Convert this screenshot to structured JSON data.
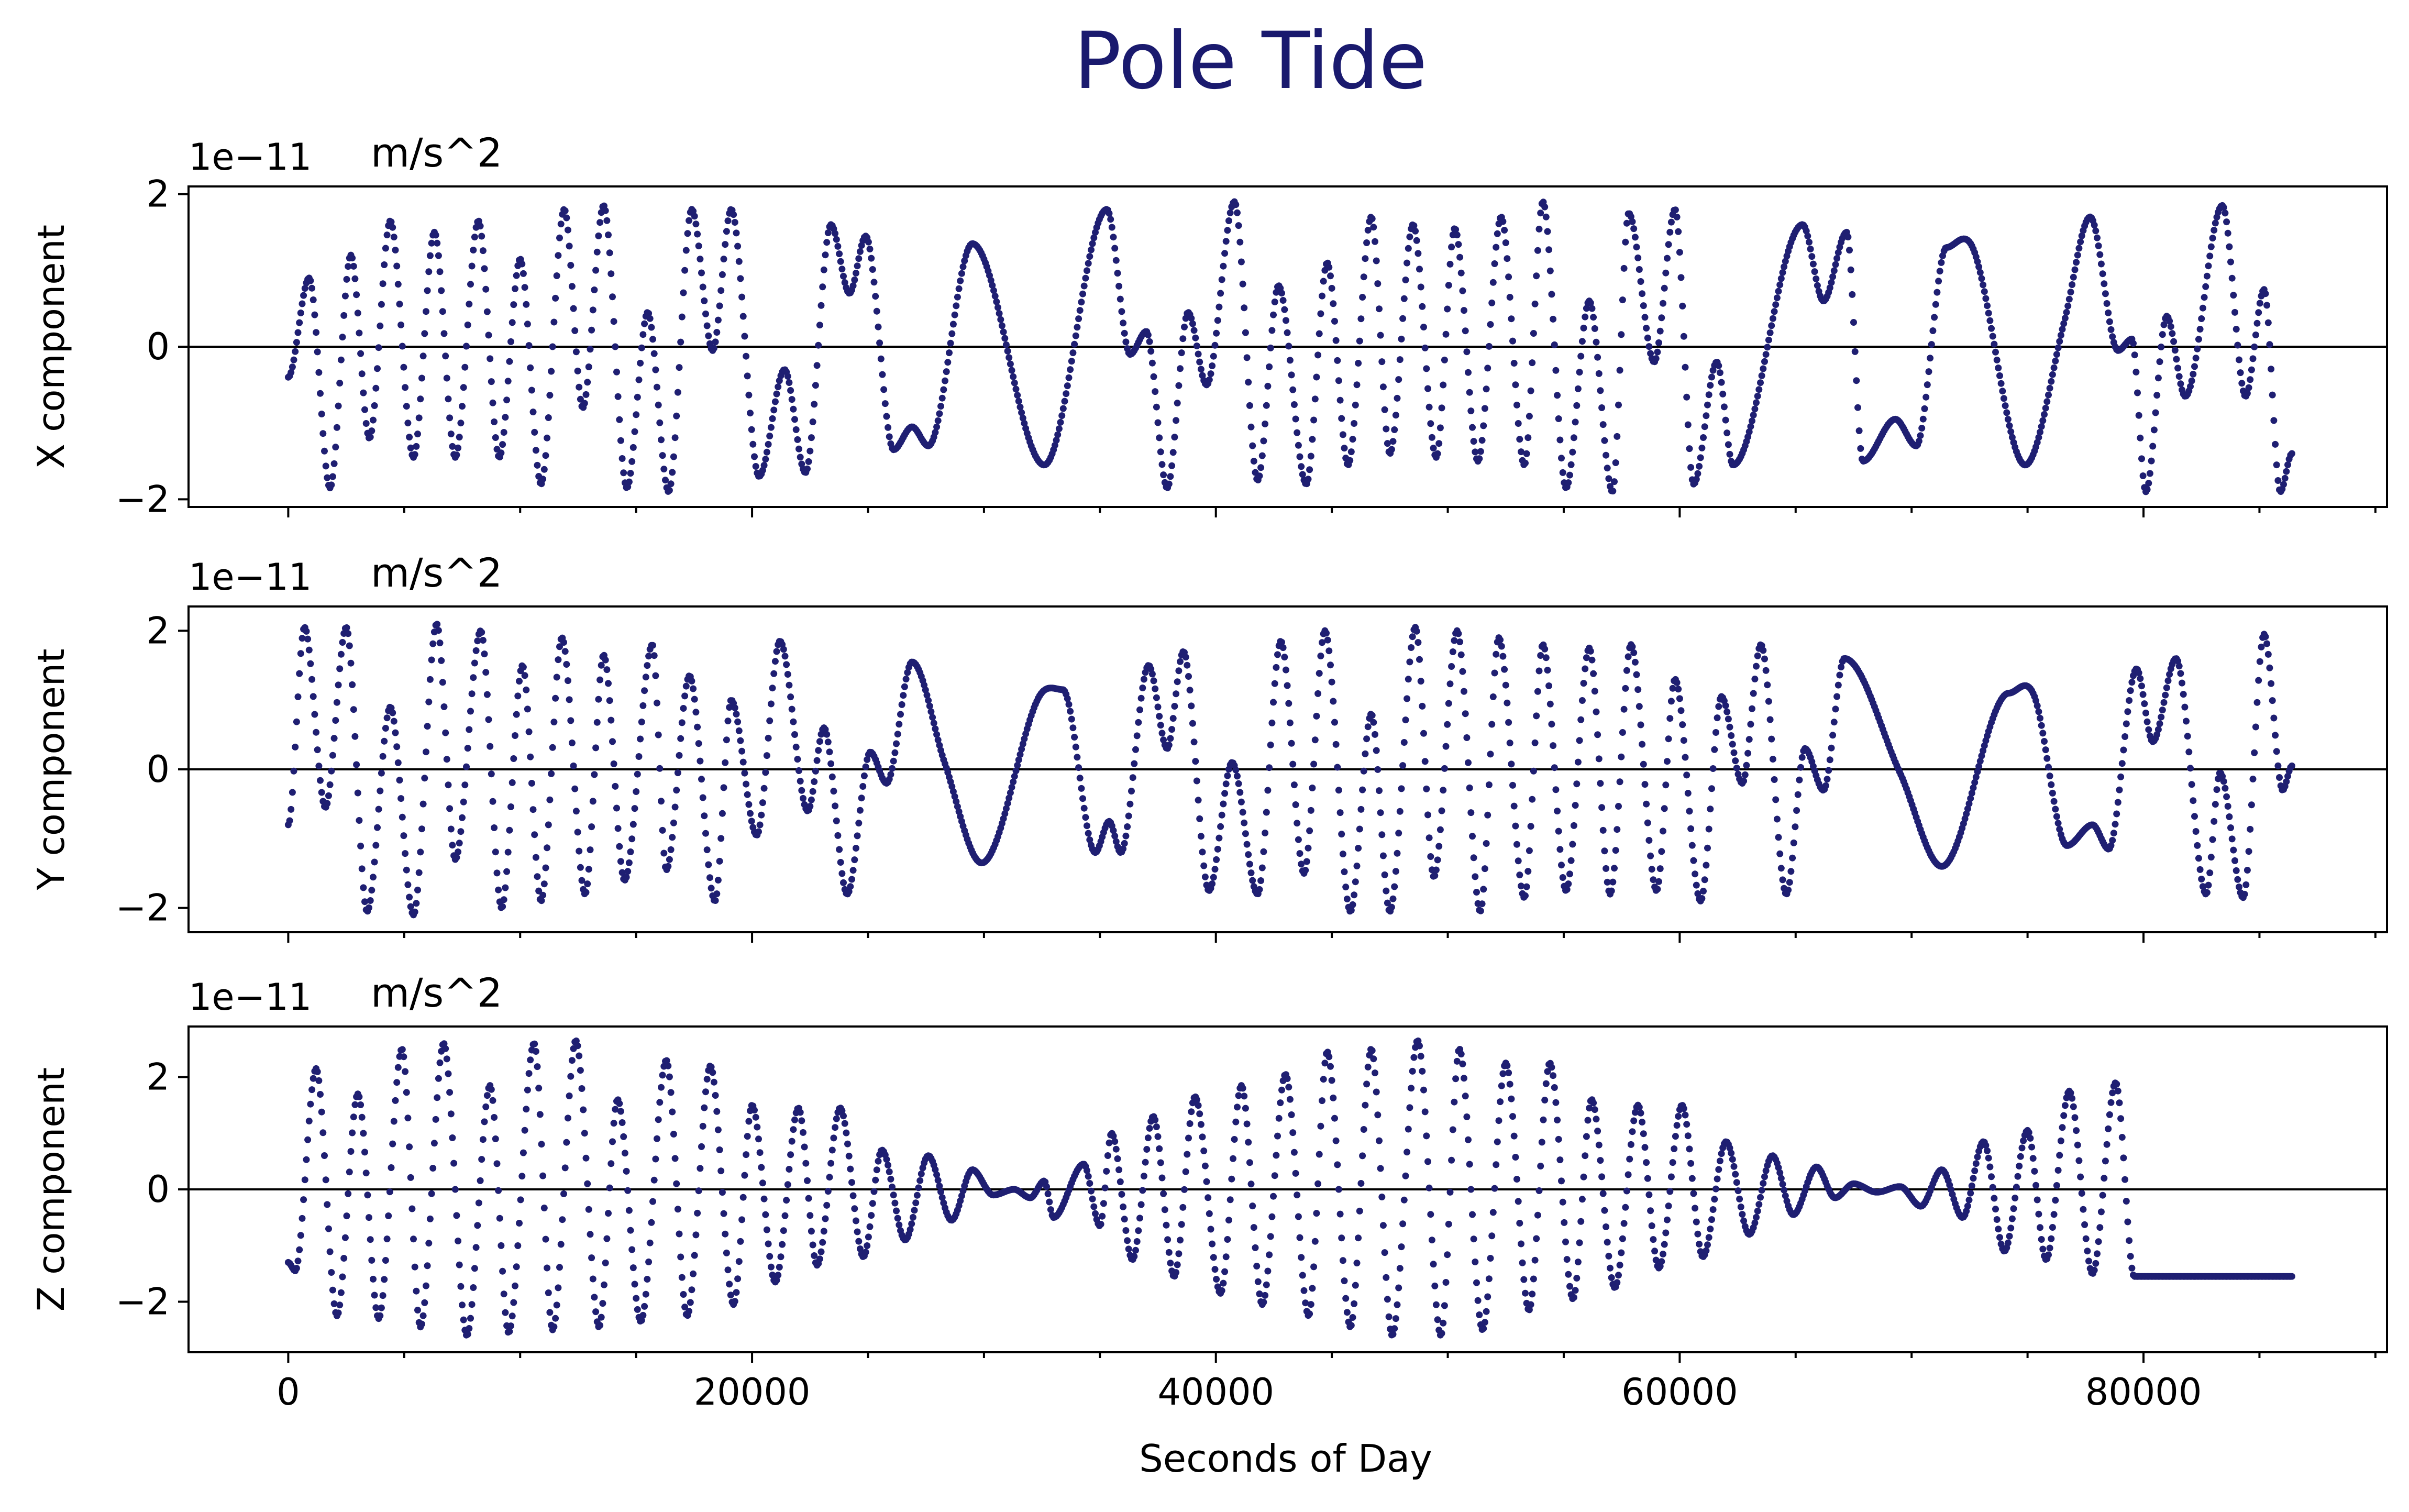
{
  "title": "Pole Tide",
  "colors": {
    "title": "#1a1a6e",
    "series": "#1f1f72",
    "axis": "#000000",
    "zero_line": "#000000"
  },
  "chart_data": [
    {
      "type": "scatter",
      "ylabel": "X component",
      "unit": "m/s^2",
      "offset_label": "1e−11",
      "xlim": [
        -4300,
        90500
      ],
      "ylim": [
        -2.1,
        2.1
      ],
      "yticks": [
        -2,
        0,
        2
      ],
      "ytick_labels": [
        "−2",
        "0",
        "2"
      ],
      "scale": 1e-11,
      "x_range": [
        0,
        86400
      ],
      "zero_line": true,
      "series": [
        {
          "values_at_knots": [
            -0.4,
            0.9,
            -1.85,
            1.2,
            -1.2,
            1.65,
            -1.45,
            1.5,
            -1.45,
            1.65,
            -1.45,
            1.15,
            -1.8,
            1.8,
            -0.8,
            1.85,
            -1.85,
            0.45,
            -1.9,
            1.8,
            -0.05,
            1.8,
            -1.7,
            -0.3,
            -1.65,
            1.6,
            0.7,
            1.45,
            -1.35,
            -1.05,
            -1.3,
            1.35,
            -1.55,
            1.8,
            -0.1,
            0.2,
            -1.85,
            0.45,
            -0.5,
            1.9,
            -1.75,
            0.8,
            -1.8,
            1.1,
            -1.55,
            1.7,
            -1.4,
            1.6,
            -1.45,
            1.55,
            -1.5,
            1.7,
            -1.55,
            1.9,
            -1.85,
            0.6,
            -1.9,
            1.75,
            -0.2,
            1.8,
            -1.8,
            -0.2,
            -1.55,
            1.6,
            0.6,
            1.5,
            -1.5,
            -0.95,
            -1.3,
            1.3,
            1.25,
            -1.55,
            0.35,
            1.7,
            -0.05,
            0.1,
            -1.9,
            0.4,
            -0.65,
            1.85,
            -0.65,
            0.75,
            -1.9,
            -1.4
          ],
          "knot_x": [
            0,
            900,
            1800,
            2700,
            3500,
            4400,
            5400,
            6300,
            7200,
            8200,
            9100,
            10000,
            10900,
            11900,
            12700,
            13600,
            14600,
            15500,
            16400,
            17400,
            18300,
            19100,
            20300,
            21400,
            22300,
            23400,
            24200,
            24900,
            26100,
            26900,
            27600,
            29500,
            32600,
            35300,
            36300,
            37000,
            37900,
            38800,
            39600,
            40800,
            41800,
            42700,
            43900,
            44800,
            45700,
            46700,
            47500,
            48500,
            49500,
            50300,
            51300,
            52300,
            53300,
            54100,
            55100,
            56100,
            57100,
            57800,
            58900,
            59800,
            60600,
            61600,
            62300,
            65300,
            66200,
            67200,
            67900,
            69300,
            70200,
            71500,
            72700,
            74900,
            76600,
            77700,
            78900,
            79500,
            80100,
            81000,
            81800,
            83400,
            84400,
            85200,
            85900,
            86400
          ]
        }
      ]
    },
    {
      "type": "scatter",
      "ylabel": "Y component",
      "unit": "m/s^2",
      "offset_label": "1e−11",
      "xlim": [
        -4300,
        90500
      ],
      "ylim": [
        -2.35,
        2.35
      ],
      "yticks": [
        -2,
        0,
        2
      ],
      "ytick_labels": [
        "−2",
        "0",
        "2"
      ],
      "scale": 1e-11,
      "x_range": [
        0,
        86400
      ],
      "zero_line": true,
      "series": [
        {
          "values_at_knots": [
            -0.8,
            2.05,
            -0.55,
            2.05,
            -2.05,
            0.9,
            -2.1,
            2.1,
            -1.3,
            2.0,
            -2.0,
            1.5,
            -1.9,
            1.9,
            -1.8,
            1.65,
            -1.6,
            1.8,
            -1.45,
            1.35,
            -1.9,
            1.0,
            -0.95,
            1.85,
            -0.6,
            0.6,
            -1.8,
            0.25,
            -0.2,
            1.55,
            0.1,
            -1.35,
            1.0,
            1.15,
            -1.2,
            -0.75,
            -1.2,
            1.5,
            0.3,
            1.7,
            -1.75,
            0.1,
            -1.8,
            1.85,
            -1.5,
            2.0,
            -2.05,
            0.8,
            -2.05,
            2.05,
            -1.55,
            2.0,
            -2.05,
            1.9,
            -1.85,
            1.8,
            -1.75,
            1.75,
            -1.8,
            1.8,
            -1.75,
            1.3,
            -1.9,
            1.05,
            -0.2,
            1.8,
            -1.8,
            0.3,
            -0.3,
            1.6,
            -0.05,
            -1.4,
            1.1,
            1.05,
            -1.1,
            -0.8,
            -1.15,
            1.45,
            0.4,
            1.6,
            -1.8,
            -0.05,
            -1.85,
            1.95,
            -0.3,
            0.05
          ],
          "knot_x": [
            0,
            700,
            1600,
            2500,
            3400,
            4400,
            5400,
            6400,
            7200,
            8300,
            9200,
            10100,
            10900,
            11800,
            12800,
            13600,
            14500,
            15700,
            16300,
            17300,
            18400,
            19100,
            20200,
            21200,
            22400,
            23100,
            24100,
            25100,
            25800,
            26900,
            28300,
            29900,
            32300,
            33400,
            34800,
            35400,
            35900,
            37100,
            37900,
            38600,
            39700,
            40700,
            41800,
            42800,
            43800,
            44700,
            45800,
            46700,
            47500,
            48600,
            49400,
            50400,
            51400,
            52200,
            53300,
            54100,
            55100,
            56100,
            57000,
            57900,
            59000,
            59800,
            60900,
            61800,
            62700,
            63500,
            64600,
            65400,
            66200,
            67100,
            69500,
            71300,
            74200,
            75300,
            76700,
            77800,
            78500,
            79700,
            80400,
            81400,
            82700,
            83300,
            84300,
            85200,
            86000,
            86400
          ]
        }
      ]
    },
    {
      "type": "scatter",
      "ylabel": "Z component",
      "unit": "m/s^2",
      "offset_label": "1e−11",
      "xlim": [
        -4300,
        90500
      ],
      "ylim": [
        -2.9,
        2.9
      ],
      "yticks": [
        -2,
        0,
        2
      ],
      "ytick_labels": [
        "−2",
        "0",
        "2"
      ],
      "scale": 1e-11,
      "x_range": [
        0,
        86400
      ],
      "zero_line": true,
      "series": [
        {
          "values_at_knots": [
            -1.3,
            -1.45,
            2.15,
            -2.25,
            1.7,
            -2.3,
            2.5,
            -2.45,
            2.6,
            -2.6,
            1.85,
            -2.55,
            2.6,
            -2.5,
            2.65,
            -2.45,
            1.6,
            -2.35,
            2.3,
            -2.25,
            2.2,
            -2.05,
            1.5,
            -1.65,
            1.45,
            -1.35,
            1.45,
            -1.2,
            0.7,
            -0.9,
            0.6,
            -0.55,
            0.35,
            -0.1,
            0.0,
            -0.15,
            0.15,
            -0.5,
            0.45,
            -0.65,
            1.0,
            -1.25,
            1.3,
            -1.55,
            1.65,
            -1.85,
            1.85,
            -2.05,
            2.05,
            -2.25,
            2.45,
            -2.45,
            2.5,
            -2.6,
            2.65,
            -2.6,
            2.5,
            -2.5,
            2.25,
            -2.15,
            2.25,
            -1.95,
            1.6,
            -1.75,
            1.5,
            -1.4,
            1.5,
            -1.2,
            0.85,
            -0.8,
            0.6,
            -0.45,
            0.4,
            -0.15,
            0.1,
            -0.05,
            0.05,
            -0.3,
            0.35,
            -0.5,
            0.85,
            -1.1,
            1.05,
            -1.25,
            1.75,
            -1.5,
            1.9,
            -1.55
          ],
          "knot_x": [
            0,
            300,
            1200,
            2100,
            3000,
            3900,
            4900,
            5700,
            6700,
            7700,
            8700,
            9500,
            10600,
            11400,
            12400,
            13400,
            14200,
            15200,
            16300,
            17200,
            18200,
            19200,
            20000,
            21000,
            22000,
            22800,
            23800,
            24800,
            25600,
            26600,
            27600,
            28600,
            29500,
            30400,
            31300,
            32000,
            32600,
            33000,
            34300,
            35000,
            35500,
            36400,
            37300,
            38200,
            39100,
            40200,
            41100,
            42000,
            43000,
            44000,
            44800,
            45800,
            46700,
            47600,
            48700,
            49700,
            50500,
            51500,
            52500,
            53500,
            54400,
            55400,
            56200,
            57200,
            58200,
            59100,
            60100,
            61000,
            62000,
            63000,
            64000,
            64900,
            65900,
            66700,
            67500,
            68500,
            69500,
            70400,
            71300,
            72200,
            73100,
            74000,
            75000,
            75800,
            76800,
            77800,
            78800,
            79600
          ]
        }
      ]
    }
  ],
  "xaxis": {
    "label": "Seconds of Day",
    "ticks": [
      0,
      20000,
      40000,
      60000,
      80000
    ],
    "tick_labels": [
      "0",
      "20000",
      "40000",
      "60000",
      "80000"
    ],
    "minor_step": 5000
  }
}
